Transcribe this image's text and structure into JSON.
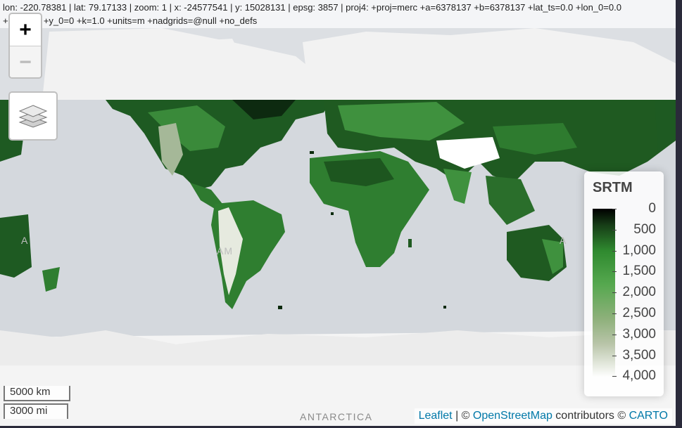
{
  "coordinates": {
    "line1": "lon: -220.78381 | lat: 79.17133 | zoom: 1 | x: -24577541 | y: 15028131 | epsg: 3857 | proj4: +proj=merc +a=6378137 +b=6378137 +lat_ts=0.0 +lon_0=0.0",
    "line2": "+x_0=0.0 +y_0=0 +k=1.0 +units=m +nadgrids=@null +no_defs"
  },
  "zoom": {
    "in_label": "+",
    "out_label": "−"
  },
  "layers_icon": "layers-icon",
  "legend": {
    "title": "SRTM",
    "labels": [
      "0",
      "500",
      "1,000",
      "1,500",
      "2,000",
      "2,500",
      "3,000",
      "3,500",
      "4,000"
    ],
    "colors": {
      "low": "#000000",
      "mid": "#2f8a2f",
      "high": "#ffffff"
    }
  },
  "scale": {
    "km": "5000 km",
    "mi": "3000 mi"
  },
  "map_labels": {
    "antarctica": "ANTARCTICA",
    "america_clip": "AM",
    "asia_clip": "A"
  },
  "attribution": {
    "leaflet": "Leaflet",
    "sep": " | © ",
    "osm": "OpenStreetMap",
    "contributors": " contributors © ",
    "carto": "CARTO"
  }
}
